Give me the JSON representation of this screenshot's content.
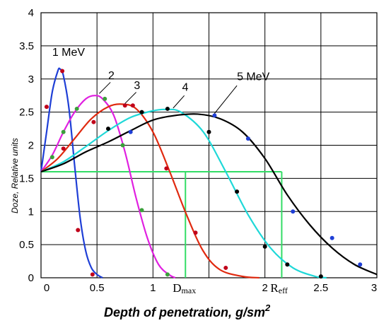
{
  "chart_data": {
    "type": "line",
    "xlabel": "Depth of penetration, g/sm",
    "xlabel_sup": "2",
    "ylabel": "Doze, Relative units",
    "xlim": [
      0,
      3
    ],
    "ylim": [
      0,
      4
    ],
    "x_ticks": [
      "0",
      "0.5",
      "1",
      "",
      "2",
      "2.5",
      "3"
    ],
    "y_ticks": [
      "0",
      "0.5",
      "1",
      "1.5",
      "2",
      "2.5",
      "3",
      "3.5",
      "4"
    ],
    "grid": true,
    "series": [
      {
        "name": "1 MeV",
        "color": "#1f3fd6",
        "curve": [
          [
            0,
            1.6
          ],
          [
            0.05,
            2.2
          ],
          [
            0.1,
            2.8
          ],
          [
            0.15,
            3.12
          ],
          [
            0.17,
            3.15
          ],
          [
            0.2,
            3.05
          ],
          [
            0.25,
            2.55
          ],
          [
            0.3,
            1.7
          ],
          [
            0.35,
            0.9
          ],
          [
            0.4,
            0.4
          ],
          [
            0.45,
            0.15
          ],
          [
            0.5,
            0.05
          ],
          [
            0.55,
            0
          ]
        ],
        "points": [
          [
            0.05,
            2.58
          ],
          [
            0.19,
            3.12
          ],
          [
            0.33,
            0.72
          ],
          [
            0.46,
            0.05
          ]
        ],
        "point_color": "#c0001a"
      },
      {
        "name": "2",
        "color": "#e020e0",
        "curve": [
          [
            0,
            1.6
          ],
          [
            0.1,
            1.85
          ],
          [
            0.2,
            2.2
          ],
          [
            0.3,
            2.5
          ],
          [
            0.4,
            2.7
          ],
          [
            0.48,
            2.75
          ],
          [
            0.55,
            2.7
          ],
          [
            0.65,
            2.45
          ],
          [
            0.75,
            1.9
          ],
          [
            0.85,
            1.2
          ],
          [
            0.95,
            0.6
          ],
          [
            1.05,
            0.2
          ],
          [
            1.15,
            0.04
          ],
          [
            1.2,
            0
          ]
        ],
        "points": [
          [
            0.1,
            1.82
          ],
          [
            0.2,
            2.2
          ],
          [
            0.32,
            2.55
          ],
          [
            0.57,
            2.7
          ],
          [
            0.73,
            2.0
          ],
          [
            0.9,
            1.02
          ],
          [
            1.13,
            0.05
          ]
        ],
        "point_color": "#3aa03a"
      },
      {
        "name": "3",
        "color": "#e02a10",
        "curve": [
          [
            0,
            1.6
          ],
          [
            0.15,
            1.8
          ],
          [
            0.3,
            2.1
          ],
          [
            0.45,
            2.4
          ],
          [
            0.6,
            2.58
          ],
          [
            0.72,
            2.62
          ],
          [
            0.85,
            2.55
          ],
          [
            1.0,
            2.2
          ],
          [
            1.15,
            1.6
          ],
          [
            1.3,
            0.95
          ],
          [
            1.45,
            0.4
          ],
          [
            1.6,
            0.12
          ],
          [
            1.8,
            0.02
          ],
          [
            1.95,
            0
          ]
        ],
        "points": [
          [
            0.2,
            1.95
          ],
          [
            0.47,
            2.35
          ],
          [
            0.75,
            2.6
          ],
          [
            0.82,
            2.6
          ],
          [
            1.12,
            1.65
          ],
          [
            1.38,
            0.68
          ],
          [
            1.65,
            0.15
          ]
        ],
        "point_color": "#c0001a"
      },
      {
        "name": "4",
        "color": "#1fd8d8",
        "curve": [
          [
            0,
            1.6
          ],
          [
            0.2,
            1.75
          ],
          [
            0.4,
            1.98
          ],
          [
            0.6,
            2.22
          ],
          [
            0.8,
            2.42
          ],
          [
            1.0,
            2.52
          ],
          [
            1.12,
            2.54
          ],
          [
            1.25,
            2.5
          ],
          [
            1.45,
            2.2
          ],
          [
            1.65,
            1.6
          ],
          [
            1.85,
            0.95
          ],
          [
            2.05,
            0.45
          ],
          [
            2.25,
            0.15
          ],
          [
            2.45,
            0.02
          ],
          [
            2.55,
            0
          ]
        ],
        "points": [
          [
            0.6,
            2.25
          ],
          [
            0.9,
            2.5
          ],
          [
            1.13,
            2.55
          ],
          [
            1.5,
            2.2
          ],
          [
            1.75,
            1.3
          ],
          [
            2.0,
            0.47
          ],
          [
            2.2,
            0.2
          ],
          [
            2.5,
            0.02
          ]
        ],
        "point_color": "#000000"
      },
      {
        "name": "5 MeV",
        "color": "#000000",
        "curve": [
          [
            0,
            1.6
          ],
          [
            0.2,
            1.72
          ],
          [
            0.4,
            1.9
          ],
          [
            0.6,
            2.05
          ],
          [
            0.8,
            2.22
          ],
          [
            1.0,
            2.38
          ],
          [
            1.2,
            2.45
          ],
          [
            1.4,
            2.47
          ],
          [
            1.6,
            2.4
          ],
          [
            1.8,
            2.2
          ],
          [
            2.0,
            1.8
          ],
          [
            2.2,
            1.25
          ],
          [
            2.4,
            0.8
          ],
          [
            2.6,
            0.45
          ],
          [
            2.8,
            0.2
          ],
          [
            3.0,
            0.05
          ]
        ],
        "points": [
          [
            0.8,
            2.2
          ],
          [
            1.55,
            2.45
          ],
          [
            1.85,
            2.1
          ],
          [
            2.25,
            1.0
          ],
          [
            2.6,
            0.6
          ],
          [
            2.85,
            0.2
          ]
        ],
        "point_color": "#1f3fd6"
      }
    ],
    "annotations": [
      {
        "label": "D",
        "sub": "max",
        "x": 1.29,
        "y": 1.6
      },
      {
        "label": "R",
        "sub": "eff",
        "x": 2.15,
        "y": 1.6
      }
    ],
    "guide_color": "#33dd66"
  }
}
